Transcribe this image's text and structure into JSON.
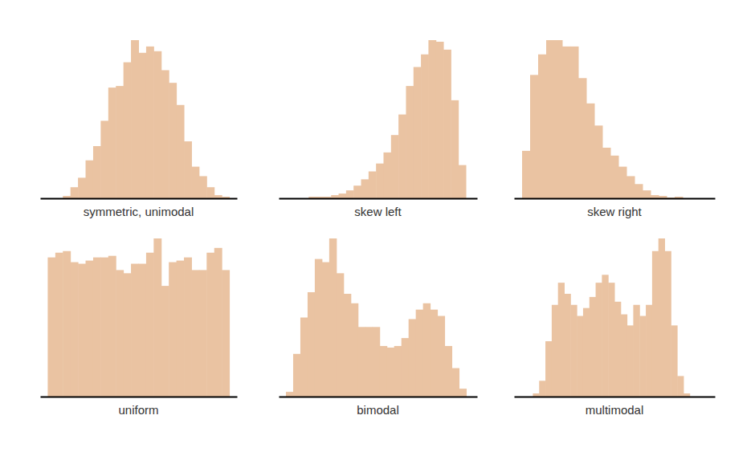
{
  "chart_data": [
    {
      "type": "histogram",
      "title": "symmetric, unimodal",
      "color": "#eac3a2",
      "tick_labels": false,
      "bins": [
        0,
        1,
        2,
        3,
        4,
        5,
        6,
        7,
        8,
        9,
        10,
        11,
        12,
        13,
        14,
        15,
        16,
        17,
        18,
        19,
        20,
        21,
        22
      ],
      "values": [
        1.5,
        7,
        13,
        24,
        33,
        49,
        70,
        71,
        86,
        100,
        92,
        96,
        93,
        81,
        73,
        59,
        36,
        20,
        14,
        7,
        2,
        1
      ],
      "xlim": [
        -3,
        23
      ],
      "ylim": [
        0,
        100
      ]
    },
    {
      "type": "histogram",
      "title": "skew left",
      "color": "#eac3a2",
      "tick_labels": false,
      "bins": [
        0,
        1,
        2,
        3,
        4,
        5,
        6,
        7,
        8,
        9,
        10,
        11,
        12,
        13,
        14,
        15,
        16,
        17,
        18,
        19,
        20,
        21
      ],
      "values": [
        1,
        1,
        1,
        2,
        3,
        5,
        8,
        12,
        17,
        22,
        29,
        40,
        53,
        71,
        83,
        91,
        100,
        99,
        94,
        62,
        21
      ],
      "xlim": [
        -4,
        22.5
      ],
      "ylim": [
        0,
        100
      ]
    },
    {
      "type": "histogram",
      "title": "skew right",
      "color": "#eac3a2",
      "tick_labels": false,
      "bins": [
        0,
        1,
        2,
        3,
        4,
        5,
        6,
        7,
        8,
        9,
        10,
        11,
        12,
        13,
        14,
        15,
        16,
        17,
        18,
        19,
        20
      ],
      "values": [
        30,
        78,
        91,
        100,
        100,
        96,
        96,
        76,
        60,
        46,
        32,
        27,
        20,
        14,
        9,
        5,
        2,
        1.5,
        0.5,
        1
      ],
      "xlim": [
        -1,
        24
      ],
      "ylim": [
        0,
        100
      ]
    },
    {
      "type": "histogram",
      "title": "uniform",
      "color": "#eac3a2",
      "tick_labels": false,
      "bins": [
        0,
        1,
        2,
        3,
        4,
        5,
        6,
        7,
        8,
        9,
        10,
        11,
        12,
        13,
        14,
        15,
        16,
        17,
        18,
        19,
        20,
        21,
        22,
        23,
        24
      ],
      "values": [
        88,
        91,
        92,
        85,
        84,
        86,
        88,
        88,
        89,
        80,
        78,
        84,
        84,
        91,
        100,
        70,
        85,
        86,
        88,
        80,
        80,
        91,
        94,
        80
      ],
      "xlim": [
        -1,
        25
      ],
      "ylim": [
        0,
        100
      ]
    },
    {
      "type": "histogram",
      "title": "bimodal",
      "color": "#eac3a2",
      "tick_labels": false,
      "bins": [
        0,
        1,
        2,
        3,
        4,
        5,
        6,
        7,
        8,
        9,
        10,
        11,
        12,
        13,
        14,
        15,
        16,
        17,
        18,
        19,
        20,
        21,
        22,
        23,
        24,
        25
      ],
      "values": [
        3,
        27,
        50,
        66,
        87,
        85,
        100,
        78,
        65,
        59,
        44,
        44,
        44,
        32,
        31,
        32,
        37,
        49,
        55,
        59,
        55,
        51,
        32,
        18,
        5
      ],
      "xlim": [
        -1,
        26.5
      ],
      "ylim": [
        0,
        100
      ]
    },
    {
      "type": "histogram",
      "title": "multimodal",
      "color": "#eac3a2",
      "tick_labels": false,
      "bins": [
        0,
        1,
        2,
        3,
        4,
        5,
        6,
        7,
        8,
        9,
        10,
        11,
        12,
        13,
        14,
        15,
        16,
        17,
        18,
        19,
        20,
        21,
        22,
        23,
        24,
        25
      ],
      "values": [
        2,
        10,
        35,
        58,
        72,
        65,
        58,
        51,
        56,
        63,
        72,
        77,
        72,
        60,
        52,
        45,
        58,
        51,
        58,
        92,
        100,
        92,
        45,
        13,
        2
      ],
      "xlim": [
        -3,
        29
      ],
      "ylim": [
        0,
        100
      ]
    }
  ]
}
